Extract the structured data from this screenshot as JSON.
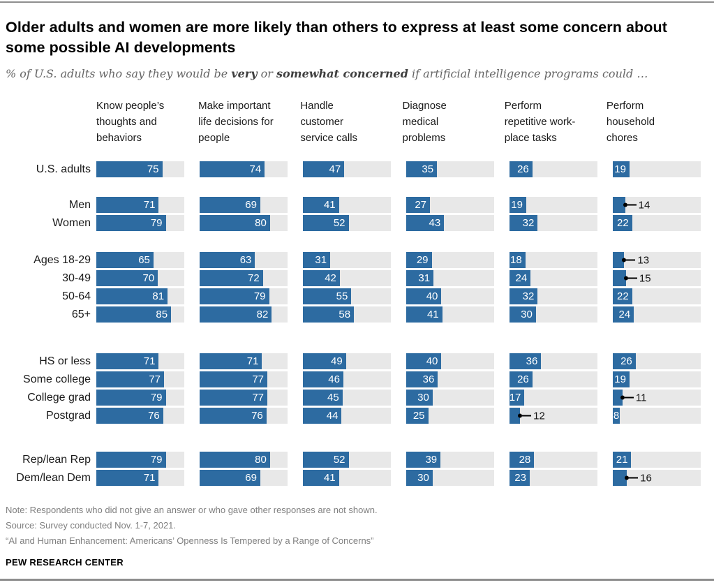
{
  "header": {
    "title": "Older adults and women are more likely than others to express at least some concern about some possible AI developments",
    "subtitle": {
      "prefix": "% of U.S. adults who say they would be ",
      "bold1": "very",
      "mid": " or ",
      "bold2": "somewhat concerned",
      "suffix": " if artificial intelligence programs could …"
    }
  },
  "colors": {
    "bar": "#2d6ba1",
    "track": "#e8e8e8",
    "callout": "#000000",
    "rule": "#8e8e8e"
  },
  "chart_data": {
    "type": "bar",
    "title": "Older adults and women are more likely than others to express at least some concern about some possible AI developments",
    "unit": "% very or somewhat concerned",
    "xlim": [
      0,
      100
    ],
    "categories": [
      "Know people's thoughts and behaviors",
      "Make important life decisions for people",
      "Handle customer service calls",
      "Diagnose medical problems",
      "Perform repetitive workplace tasks",
      "Perform household chores"
    ],
    "column_headers_display": [
      "Know people’s\nthoughts and\nbehaviors",
      "Make important\nlife decisions for\npeople",
      "Handle\ncustomer\nservice calls",
      "Diagnose\nmedical\nproblems",
      "Perform\nrepetitive work-\nplace tasks",
      "Perform\nhousehold\nchores"
    ],
    "groups": [
      {
        "name": "overall",
        "rows": [
          {
            "label": "U.S. adults",
            "values": [
              75,
              74,
              47,
              35,
              26,
              19
            ],
            "callout_cols": []
          }
        ]
      },
      {
        "name": "gender",
        "rows": [
          {
            "label": "Men",
            "values": [
              71,
              69,
              41,
              27,
              19,
              14
            ],
            "callout_cols": [
              5
            ]
          },
          {
            "label": "Women",
            "values": [
              79,
              80,
              52,
              43,
              32,
              22
            ],
            "callout_cols": []
          }
        ]
      },
      {
        "name": "age",
        "rows": [
          {
            "label": "Ages 18-29",
            "values": [
              65,
              63,
              31,
              29,
              18,
              13
            ],
            "callout_cols": [
              5
            ]
          },
          {
            "label": "30-49",
            "values": [
              70,
              72,
              42,
              31,
              24,
              15
            ],
            "callout_cols": [
              5
            ]
          },
          {
            "label": "50-64",
            "values": [
              81,
              79,
              55,
              40,
              32,
              22
            ],
            "callout_cols": []
          },
          {
            "label": "65+",
            "values": [
              85,
              82,
              58,
              41,
              30,
              24
            ],
            "callout_cols": []
          }
        ]
      },
      {
        "name": "education",
        "rows": [
          {
            "label": "HS or less",
            "values": [
              71,
              71,
              49,
              40,
              36,
              26
            ],
            "callout_cols": []
          },
          {
            "label": "Some college",
            "values": [
              77,
              77,
              46,
              36,
              26,
              19
            ],
            "callout_cols": []
          },
          {
            "label": "College grad",
            "values": [
              79,
              77,
              45,
              30,
              17,
              11
            ],
            "callout_cols": [
              5
            ]
          },
          {
            "label": "Postgrad",
            "values": [
              76,
              76,
              44,
              25,
              12,
              8
            ],
            "callout_cols": [
              4
            ]
          }
        ]
      },
      {
        "name": "party",
        "rows": [
          {
            "label": "Rep/lean Rep",
            "values": [
              79,
              80,
              52,
              39,
              28,
              21
            ],
            "callout_cols": []
          },
          {
            "label": "Dem/lean Dem",
            "values": [
              71,
              69,
              41,
              30,
              23,
              16
            ],
            "callout_cols": [
              5
            ]
          }
        ]
      }
    ]
  },
  "footer": {
    "note": "Note: Respondents who did not give an answer or who gave other responses are not shown.",
    "source": "Source: Survey conducted Nov. 1-7, 2021.",
    "quote": "“AI and Human Enhancement: Americans’ Openness Is Tempered by a Range of Concerns”",
    "brand": "PEW RESEARCH CENTER"
  }
}
